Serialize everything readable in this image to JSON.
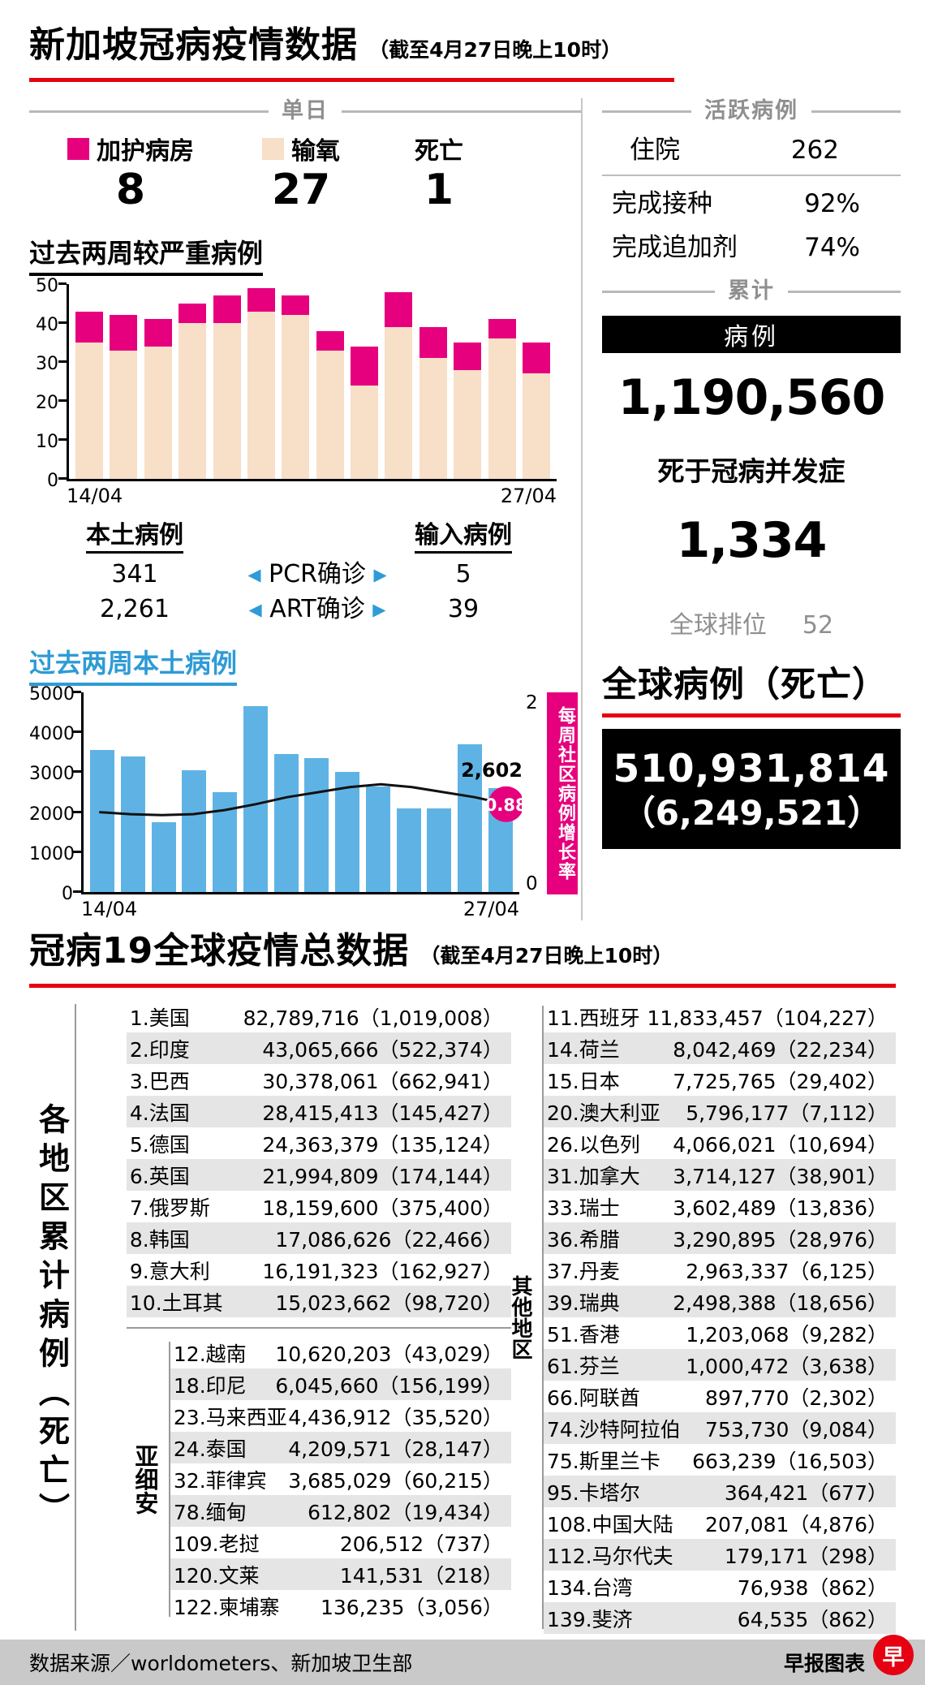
{
  "page": {
    "title": "新加坡冠病疫情数据",
    "title_suffix": "（截至4月27日晚上10时）",
    "section2_title": "冠病19全球疫情总数据",
    "section2_suffix": "（截至4月27日晚上10时）",
    "footer": {
      "source": "数据来源／worldometers、新加坡卫生部",
      "credit": "早报图表",
      "logo_glyph": "早"
    },
    "colors": {
      "pink": "#e6007d",
      "beige": "#f7dfc8",
      "blue_bar": "#5fb3e4",
      "blue_text": "#2e9bd6",
      "red": "#e60012"
    }
  },
  "daily": {
    "header": "单日",
    "items": [
      {
        "label": "加护病房",
        "value": "8",
        "swatch": "pink"
      },
      {
        "label": "输氧",
        "value": "27",
        "swatch": "beige"
      },
      {
        "label": "死亡",
        "value": "1",
        "swatch": "none"
      }
    ]
  },
  "local_imported": {
    "local_header": "本土病例",
    "imported_header": "输入病例",
    "rows": [
      {
        "local": "341",
        "label": "PCR确诊",
        "imported": "5"
      },
      {
        "local": "2,261",
        "label": "ART确诊",
        "imported": "39"
      }
    ]
  },
  "active": {
    "header": "活跃病例",
    "hospitalized": {
      "label": "住院",
      "value": "262"
    },
    "vaccinated": {
      "label": "完成接种",
      "value": "92%"
    },
    "boosted": {
      "label": "完成追加剂",
      "value": "74%"
    }
  },
  "cumulative": {
    "header": "累计",
    "cases_label": "病例",
    "cases_value": "1,190,560",
    "deaths_label": "死于冠病并发症",
    "deaths_value": "1,334",
    "rank_label": "全球排位",
    "rank_value": "52"
  },
  "global_total": {
    "title": "全球病例（死亡）",
    "cases": "510,931,814",
    "deaths": "（6,249,521）"
  },
  "chart_data": [
    {
      "type": "bar",
      "subtype": "stacked",
      "title": "过去两周较严重病例",
      "x_start": "14/04",
      "x_end": "27/04",
      "ylim": [
        0,
        50
      ],
      "yticks": [
        0,
        10,
        20,
        30,
        40,
        50
      ],
      "series": [
        {
          "name": "输氧",
          "color": "#f7dfc8",
          "values": [
            35,
            33,
            34,
            40,
            40,
            43,
            42,
            33,
            24,
            39,
            31,
            28,
            36,
            27
          ]
        },
        {
          "name": "加护病房",
          "color": "#e6007d",
          "values": [
            8,
            9,
            7,
            5,
            7,
            6,
            5,
            5,
            10,
            9,
            8,
            7,
            5,
            8
          ]
        }
      ]
    },
    {
      "type": "bar",
      "subtype": "bar+line",
      "title": "过去两周本土病例",
      "x_start": "14/04",
      "x_end": "27/04",
      "ylim": [
        0,
        5000
      ],
      "yticks": [
        0,
        1000,
        2000,
        3000,
        4000,
        5000
      ],
      "bars": {
        "name": "本土病例",
        "color": "#5fb3e4",
        "values": [
          3550,
          3400,
          1750,
          3050,
          2500,
          4650,
          3450,
          3350,
          3000,
          2650,
          2100,
          2100,
          3700,
          2602
        ]
      },
      "line": {
        "name": "每周社区病例增长率",
        "color": "#111111",
        "values": [
          0.8,
          0.78,
          0.77,
          0.78,
          0.82,
          0.88,
          0.95,
          1.0,
          1.05,
          1.08,
          1.05,
          1.0,
          0.95,
          0.88
        ]
      },
      "right_ylim": [
        0,
        2
      ],
      "right_axis_top": "2",
      "right_axis_bottom": "0",
      "last_bar_label": "2,602",
      "last_rate_label": "0.88"
    }
  ],
  "world_table": {
    "side_label": "各地区累计病例（死亡）",
    "asean_label": "亚细安",
    "other_label": "其他地区",
    "top10": [
      {
        "rank": "1.",
        "name": "美国",
        "cases": "82,789,716",
        "deaths": "1,019,008"
      },
      {
        "rank": "2.",
        "name": "印度",
        "cases": "43,065,666",
        "deaths": "522,374"
      },
      {
        "rank": "3.",
        "name": "巴西",
        "cases": "30,378,061",
        "deaths": "662,941"
      },
      {
        "rank": "4.",
        "name": "法国",
        "cases": "28,415,413",
        "deaths": "145,427"
      },
      {
        "rank": "5.",
        "name": "德国",
        "cases": "24,363,379",
        "deaths": "135,124"
      },
      {
        "rank": "6.",
        "name": "英国",
        "cases": "21,994,809",
        "deaths": "174,144"
      },
      {
        "rank": "7.",
        "name": "俄罗斯",
        "cases": "18,159,600",
        "deaths": "375,400"
      },
      {
        "rank": "8.",
        "name": "韩国",
        "cases": "17,086,626",
        "deaths": "22,466"
      },
      {
        "rank": "9.",
        "name": "意大利",
        "cases": "16,191,323",
        "deaths": "162,927"
      },
      {
        "rank": "10.",
        "name": "土耳其",
        "cases": "15,023,662",
        "deaths": "98,720"
      }
    ],
    "asean": [
      {
        "rank": "12.",
        "name": "越南",
        "cases": "10,620,203",
        "deaths": "43,029"
      },
      {
        "rank": "18.",
        "name": "印尼",
        "cases": "6,045,660",
        "deaths": "156,199"
      },
      {
        "rank": "23.",
        "name": "马来西亚",
        "cases": "4,436,912",
        "deaths": "35,520"
      },
      {
        "rank": "24.",
        "name": "泰国",
        "cases": "4,209,571",
        "deaths": "28,147"
      },
      {
        "rank": "32.",
        "name": "菲律宾",
        "cases": "3,685,029",
        "deaths": "60,215"
      },
      {
        "rank": "78.",
        "name": "缅甸",
        "cases": "612,802",
        "deaths": "19,434"
      },
      {
        "rank": "109.",
        "name": "老挝",
        "cases": "206,512",
        "deaths": "737"
      },
      {
        "rank": "120.",
        "name": "文莱",
        "cases": "141,531",
        "deaths": "218"
      },
      {
        "rank": "122.",
        "name": "柬埔寨",
        "cases": "136,235",
        "deaths": "3,056"
      }
    ],
    "others": [
      {
        "rank": "11.",
        "name": "西班牙",
        "cases": "11,833,457",
        "deaths": "104,227"
      },
      {
        "rank": "14.",
        "name": "荷兰",
        "cases": "8,042,469",
        "deaths": "22,234"
      },
      {
        "rank": "15.",
        "name": "日本",
        "cases": "7,725,765",
        "deaths": "29,402"
      },
      {
        "rank": "20.",
        "name": "澳大利亚",
        "cases": "5,796,177",
        "deaths": "7,112"
      },
      {
        "rank": "26.",
        "name": "以色列",
        "cases": "4,066,021",
        "deaths": "10,694"
      },
      {
        "rank": "31.",
        "name": "加拿大",
        "cases": "3,714,127",
        "deaths": "38,901"
      },
      {
        "rank": "33.",
        "name": "瑞士",
        "cases": "3,602,489",
        "deaths": "13,836"
      },
      {
        "rank": "36.",
        "name": "希腊",
        "cases": "3,290,895",
        "deaths": "28,976"
      },
      {
        "rank": "37.",
        "name": "丹麦",
        "cases": "2,963,337",
        "deaths": "6,125"
      },
      {
        "rank": "39.",
        "name": "瑞典",
        "cases": "2,498,388",
        "deaths": "18,656"
      },
      {
        "rank": "51.",
        "name": "香港",
        "cases": "1,203,068",
        "deaths": "9,282"
      },
      {
        "rank": "61.",
        "name": "芬兰",
        "cases": "1,000,472",
        "deaths": "3,638"
      },
      {
        "rank": "66.",
        "name": "阿联酋",
        "cases": "897,770",
        "deaths": "2,302"
      },
      {
        "rank": "74.",
        "name": "沙特阿拉伯",
        "cases": "753,730",
        "deaths": "9,084"
      },
      {
        "rank": "75.",
        "name": "斯里兰卡",
        "cases": "663,239",
        "deaths": "16,503"
      },
      {
        "rank": "95.",
        "name": "卡塔尔",
        "cases": "364,421",
        "deaths": "677"
      },
      {
        "rank": "108.",
        "name": "中国大陆",
        "cases": "207,081",
        "deaths": "4,876"
      },
      {
        "rank": "112.",
        "name": "马尔代夫",
        "cases": "179,171",
        "deaths": "298"
      },
      {
        "rank": "134.",
        "name": "台湾",
        "cases": "76,938",
        "deaths": "862"
      },
      {
        "rank": "139.",
        "name": "斐济",
        "cases": "64,535",
        "deaths": "862"
      }
    ]
  }
}
